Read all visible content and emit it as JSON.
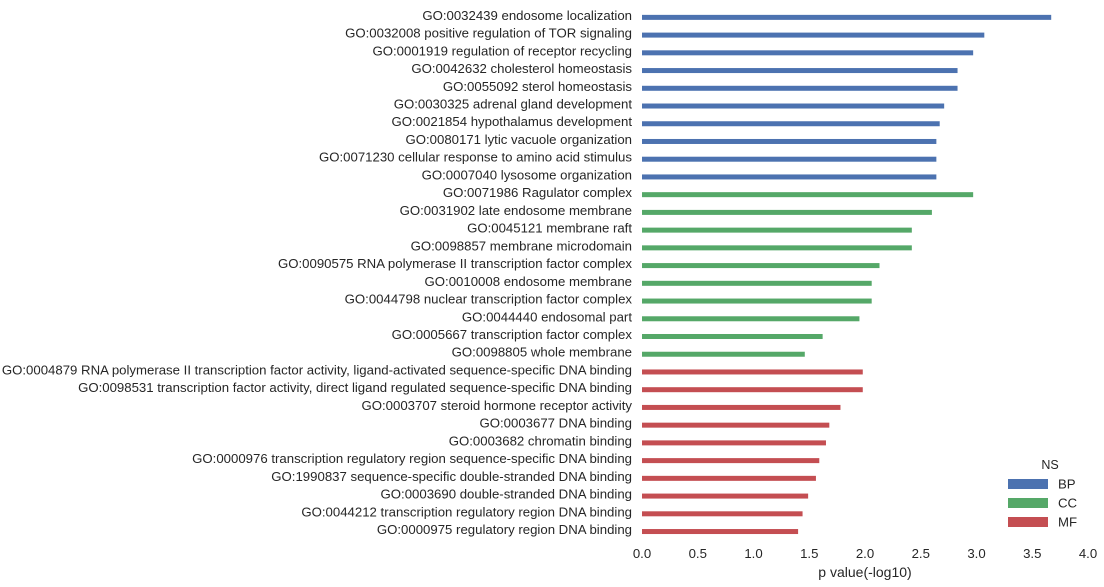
{
  "chart_data": {
    "type": "bar",
    "orientation": "horizontal",
    "xlabel": "p value(-log10)",
    "xlim": [
      0,
      4
    ],
    "xticks": [
      "0.0",
      "0.5",
      "1.0",
      "1.5",
      "2.0",
      "2.5",
      "3.0",
      "3.5",
      "4.0"
    ],
    "grid": false,
    "legend": {
      "title": "NS",
      "placement": "bottom-right",
      "entries": [
        {
          "name": "BP",
          "color": "#4c72b0"
        },
        {
          "name": "CC",
          "color": "#55a868"
        },
        {
          "name": "MF",
          "color": "#c44e52"
        }
      ]
    },
    "bars": [
      {
        "label": "GO:0032439 endosome localization",
        "value": 3.67,
        "ns": "BP"
      },
      {
        "label": "GO:0032008 positive regulation of TOR signaling",
        "value": 3.07,
        "ns": "BP"
      },
      {
        "label": "GO:0001919 regulation of receptor recycling",
        "value": 2.97,
        "ns": "BP"
      },
      {
        "label": "GO:0042632 cholesterol homeostasis",
        "value": 2.83,
        "ns": "BP"
      },
      {
        "label": "GO:0055092 sterol homeostasis",
        "value": 2.83,
        "ns": "BP"
      },
      {
        "label": "GO:0030325 adrenal gland development",
        "value": 2.71,
        "ns": "BP"
      },
      {
        "label": "GO:0021854 hypothalamus development",
        "value": 2.67,
        "ns": "BP"
      },
      {
        "label": "GO:0080171 lytic vacuole organization",
        "value": 2.64,
        "ns": "BP"
      },
      {
        "label": "GO:0071230 cellular response to amino acid stimulus",
        "value": 2.64,
        "ns": "BP"
      },
      {
        "label": "GO:0007040 lysosome organization",
        "value": 2.64,
        "ns": "BP"
      },
      {
        "label": "GO:0071986 Ragulator complex",
        "value": 2.97,
        "ns": "CC"
      },
      {
        "label": "GO:0031902 late endosome membrane",
        "value": 2.6,
        "ns": "CC"
      },
      {
        "label": "GO:0045121 membrane raft",
        "value": 2.42,
        "ns": "CC"
      },
      {
        "label": "GO:0098857 membrane microdomain",
        "value": 2.42,
        "ns": "CC"
      },
      {
        "label": "GO:0090575 RNA polymerase II transcription factor complex",
        "value": 2.13,
        "ns": "CC"
      },
      {
        "label": "GO:0010008 endosome membrane",
        "value": 2.06,
        "ns": "CC"
      },
      {
        "label": "GO:0044798 nuclear transcription factor complex",
        "value": 2.06,
        "ns": "CC"
      },
      {
        "label": "GO:0044440 endosomal part",
        "value": 1.95,
        "ns": "CC"
      },
      {
        "label": "GO:0005667 transcription factor complex",
        "value": 1.62,
        "ns": "CC"
      },
      {
        "label": "GO:0098805 whole membrane",
        "value": 1.46,
        "ns": "CC"
      },
      {
        "label": "GO:0004879 RNA polymerase II transcription factor activity, ligand-activated sequence-specific DNA binding",
        "value": 1.98,
        "ns": "MF"
      },
      {
        "label": "GO:0098531 transcription factor activity, direct ligand regulated sequence-specific DNA binding",
        "value": 1.98,
        "ns": "MF"
      },
      {
        "label": "GO:0003707 steroid hormone receptor activity",
        "value": 1.78,
        "ns": "MF"
      },
      {
        "label": "GO:0003677 DNA binding",
        "value": 1.68,
        "ns": "MF"
      },
      {
        "label": "GO:0003682 chromatin binding",
        "value": 1.65,
        "ns": "MF"
      },
      {
        "label": "GO:0000976 transcription regulatory region sequence-specific DNA binding",
        "value": 1.59,
        "ns": "MF"
      },
      {
        "label": "GO:1990837 sequence-specific double-stranded DNA binding",
        "value": 1.56,
        "ns": "MF"
      },
      {
        "label": "GO:0003690 double-stranded DNA binding",
        "value": 1.49,
        "ns": "MF"
      },
      {
        "label": "GO:0044212 transcription regulatory region DNA binding",
        "value": 1.44,
        "ns": "MF"
      },
      {
        "label": "GO:0000975 regulatory region DNA binding",
        "value": 1.4,
        "ns": "MF"
      }
    ]
  }
}
